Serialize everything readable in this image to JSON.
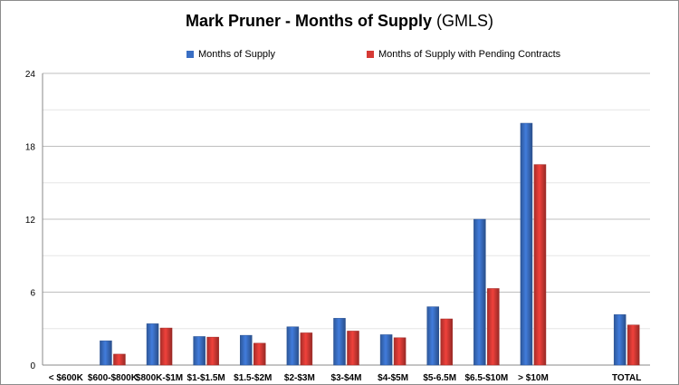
{
  "chart_data": {
    "type": "bar",
    "title": "Mark Pruner - Months of Supply",
    "subtitle": "(GMLS)",
    "xlabel": "",
    "ylabel": "",
    "ylim": [
      0,
      24
    ],
    "yticks": [
      "0",
      "6",
      "12",
      "18",
      "24"
    ],
    "grid": true,
    "legend_position": "top",
    "categories": [
      "< $600K",
      "$600-$800K",
      "$800K-$1M",
      "$1-$1.5M",
      "$1.5-$2M",
      "$2-$3M",
      "$3-$4M",
      "$4-$5M",
      "$5-6.5M",
      "$6.5-$10M",
      "> $10M",
      "",
      "TOTAL"
    ],
    "series": [
      {
        "name": "Months of Supply",
        "color": "#3a6fc4",
        "values": [
          0,
          2.0,
          3.4,
          2.35,
          2.45,
          3.15,
          3.85,
          2.5,
          4.8,
          12.0,
          19.9,
          null,
          4.15
        ]
      },
      {
        "name": "Months of Supply with Pending Contracts",
        "color": "#d63a35",
        "values": [
          0,
          0.9,
          3.05,
          2.3,
          1.8,
          2.65,
          2.8,
          2.25,
          3.8,
          6.3,
          16.5,
          null,
          3.3
        ]
      }
    ]
  }
}
